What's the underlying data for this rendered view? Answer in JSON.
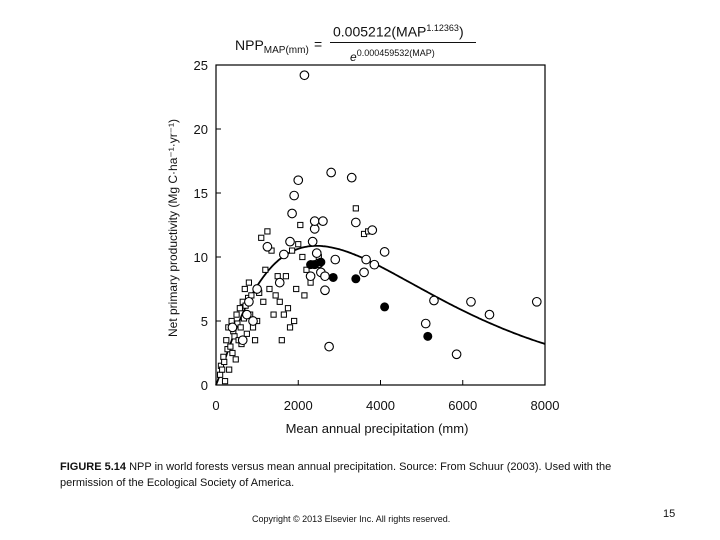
{
  "formula": {
    "lhs_main": "NPP",
    "lhs_sub": "MAP(mm)",
    "equals": "=",
    "num_coef": "0.005212(MAP",
    "num_exp": "1.12363",
    "num_close": ")",
    "den_base": "e",
    "den_exp": "0.000459532(MAP)"
  },
  "caption": {
    "fig_label": "FIGURE 5.14",
    "text": " NPP in world forests versus mean annual precipitation. Source: From Schuur (2003). Used with the permission of the Ecological Society of America."
  },
  "footer": {
    "copyright": "Copyright © 2013 Elsevier Inc. All rights reserved.",
    "page_number": "15"
  },
  "chart_data": {
    "type": "scatter",
    "xlabel": "Mean annual precipitation (mm)",
    "ylabel": "Net primary productivity (Mg C·ha⁻¹·yr⁻¹)",
    "xlim": [
      0,
      8000
    ],
    "ylim": [
      0,
      25
    ],
    "xticks": [
      "0",
      "2000",
      "4000",
      "6000",
      "8000"
    ],
    "yticks": [
      "0",
      "5",
      "10",
      "15",
      "20",
      "25"
    ],
    "grid": false,
    "series": [
      {
        "marker": "open-square",
        "points": [
          [
            100,
            0.8
          ],
          [
            120,
            1.5
          ],
          [
            150,
            1.2
          ],
          [
            180,
            2.2
          ],
          [
            200,
            1.8
          ],
          [
            220,
            0.3
          ],
          [
            250,
            3.5
          ],
          [
            280,
            2.8
          ],
          [
            300,
            4.5
          ],
          [
            320,
            1.2
          ],
          [
            350,
            3.0
          ],
          [
            380,
            5.0
          ],
          [
            400,
            2.5
          ],
          [
            420,
            4.2
          ],
          [
            450,
            3.8
          ],
          [
            480,
            2.0
          ],
          [
            500,
            5.5
          ],
          [
            520,
            4.8
          ],
          [
            550,
            3.5
          ],
          [
            580,
            6.0
          ],
          [
            600,
            4.5
          ],
          [
            620,
            3.2
          ],
          [
            650,
            6.5
          ],
          [
            680,
            5.2
          ],
          [
            700,
            7.5
          ],
          [
            720,
            6.2
          ],
          [
            750,
            4.0
          ],
          [
            780,
            6.8
          ],
          [
            800,
            8.0
          ],
          [
            830,
            5.5
          ],
          [
            860,
            7.0
          ],
          [
            900,
            4.5
          ],
          [
            950,
            3.5
          ],
          [
            1000,
            5.0
          ],
          [
            1050,
            7.2
          ],
          [
            1100,
            11.5
          ],
          [
            1150,
            6.5
          ],
          [
            1200,
            9.0
          ],
          [
            1250,
            12.0
          ],
          [
            1300,
            7.5
          ],
          [
            1350,
            10.5
          ],
          [
            1400,
            5.5
          ],
          [
            1450,
            7.0
          ],
          [
            1500,
            8.5
          ],
          [
            1550,
            6.5
          ],
          [
            1600,
            3.5
          ],
          [
            1650,
            5.5
          ],
          [
            1700,
            8.5
          ],
          [
            1750,
            6.0
          ],
          [
            1800,
            4.5
          ],
          [
            1850,
            10.5
          ],
          [
            1900,
            5.0
          ],
          [
            1950,
            7.5
          ],
          [
            2000,
            11.0
          ],
          [
            2050,
            12.5
          ],
          [
            2100,
            10.0
          ],
          [
            2150,
            7.0
          ],
          [
            2200,
            9.0
          ],
          [
            2300,
            8.0
          ],
          [
            2350,
            9.5
          ],
          [
            2500,
            10.0
          ],
          [
            3400,
            13.8
          ],
          [
            3600,
            11.8
          ],
          [
            3700,
            12.0
          ]
        ]
      },
      {
        "marker": "open-circle",
        "points": [
          [
            400,
            4.5
          ],
          [
            650,
            3.5
          ],
          [
            750,
            5.5
          ],
          [
            800,
            6.5
          ],
          [
            900,
            5.0
          ],
          [
            1000,
            7.5
          ],
          [
            1250,
            10.8
          ],
          [
            1550,
            8.0
          ],
          [
            1650,
            10.2
          ],
          [
            1800,
            11.2
          ],
          [
            1850,
            13.4
          ],
          [
            1900,
            14.8
          ],
          [
            2000,
            16.0
          ],
          [
            2150,
            24.2
          ],
          [
            2300,
            8.5
          ],
          [
            2350,
            11.2
          ],
          [
            2400,
            12.2
          ],
          [
            2400,
            12.8
          ],
          [
            2450,
            10.3
          ],
          [
            2500,
            9.5
          ],
          [
            2550,
            8.8
          ],
          [
            2600,
            12.8
          ],
          [
            2650,
            7.4
          ],
          [
            2650,
            8.5
          ],
          [
            2750,
            3.0
          ],
          [
            2800,
            16.6
          ],
          [
            2900,
            9.8
          ],
          [
            3300,
            16.2
          ],
          [
            3400,
            12.7
          ],
          [
            3600,
            8.8
          ],
          [
            3650,
            9.8
          ],
          [
            3800,
            12.1
          ],
          [
            3850,
            9.4
          ],
          [
            4100,
            10.4
          ],
          [
            5100,
            4.8
          ],
          [
            5300,
            6.6
          ],
          [
            5850,
            2.4
          ],
          [
            6200,
            6.5
          ],
          [
            6650,
            5.5
          ],
          [
            7800,
            6.5
          ]
        ]
      },
      {
        "marker": "filled-circle",
        "points": [
          [
            2300,
            9.4
          ],
          [
            2400,
            9.4
          ],
          [
            2550,
            9.6
          ],
          [
            2850,
            8.4
          ],
          [
            3400,
            8.3
          ],
          [
            4100,
            6.1
          ],
          [
            5150,
            3.8
          ]
        ]
      }
    ],
    "fit_curve": {
      "equation": "NPP = 0.005212·MAP^1.12363 / e^(0.000459532·MAP)"
    }
  }
}
